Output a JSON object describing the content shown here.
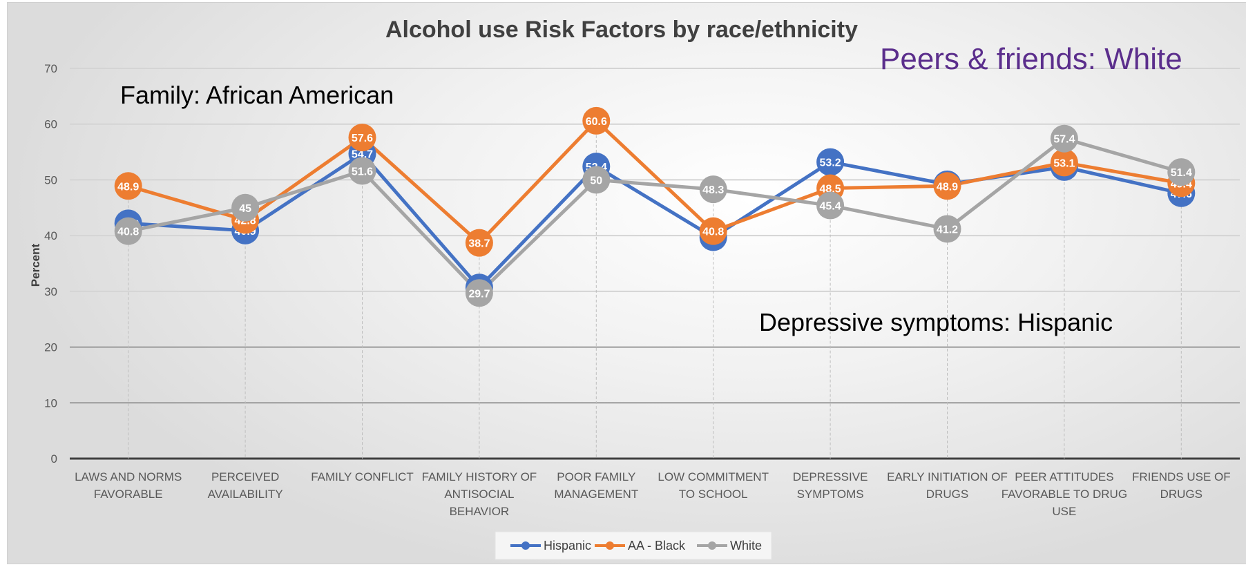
{
  "chart_data": {
    "type": "line",
    "title": "Alcohol use Risk Factors by race/ethnicity",
    "ylabel": "Percent",
    "xlabel": "",
    "ylim": [
      0,
      70
    ],
    "yticks": [
      "0",
      "10",
      "20",
      "30",
      "40",
      "50",
      "60",
      "70"
    ],
    "categories": [
      [
        "LAWS AND NORMS",
        "FAVORABLE"
      ],
      [
        "PERCEIVED",
        "AVAILABILITY"
      ],
      [
        "FAMILY CONFLICT"
      ],
      [
        "FAMILY HISTORY OF",
        "ANTISOCIAL",
        "BEHAVIOR"
      ],
      [
        "POOR FAMILY",
        "MANAGEMENT"
      ],
      [
        "LOW COMMITMENT",
        "TO SCHOOL"
      ],
      [
        "DEPRESSIVE",
        "SYMPTOMS"
      ],
      [
        "EARLY INITIATION OF",
        "DRUGS"
      ],
      [
        "PEER ATTITUDES",
        "FAVORABLE TO DRUG",
        "USE"
      ],
      [
        "FRIENDS USE OF",
        "DRUGS"
      ]
    ],
    "series": [
      {
        "name": "Hispanic",
        "color": "#4472c4",
        "values": [
          42.2,
          40.9,
          54.7,
          30.7,
          52.4,
          39.7,
          53.2,
          49.2,
          52.3,
          47.6
        ]
      },
      {
        "name": "AA - Black",
        "color": "#ed7d31",
        "values": [
          48.9,
          42.8,
          57.6,
          38.7,
          60.6,
          40.8,
          48.5,
          48.9,
          53.1,
          49.4
        ]
      },
      {
        "name": "White",
        "color": "#a5a5a5",
        "values": [
          40.8,
          45,
          51.6,
          29.7,
          50,
          48.3,
          45.4,
          41.2,
          57.4,
          51.4
        ]
      }
    ],
    "grid": true,
    "legend": "bottom-center",
    "annotations": [
      {
        "text": "Family: African American",
        "color": "#000000"
      },
      {
        "text": "Peers & friends: White",
        "color": "#5b2e8c"
      },
      {
        "text": "Depressive symptoms: Hispanic",
        "color": "#000000"
      }
    ]
  }
}
